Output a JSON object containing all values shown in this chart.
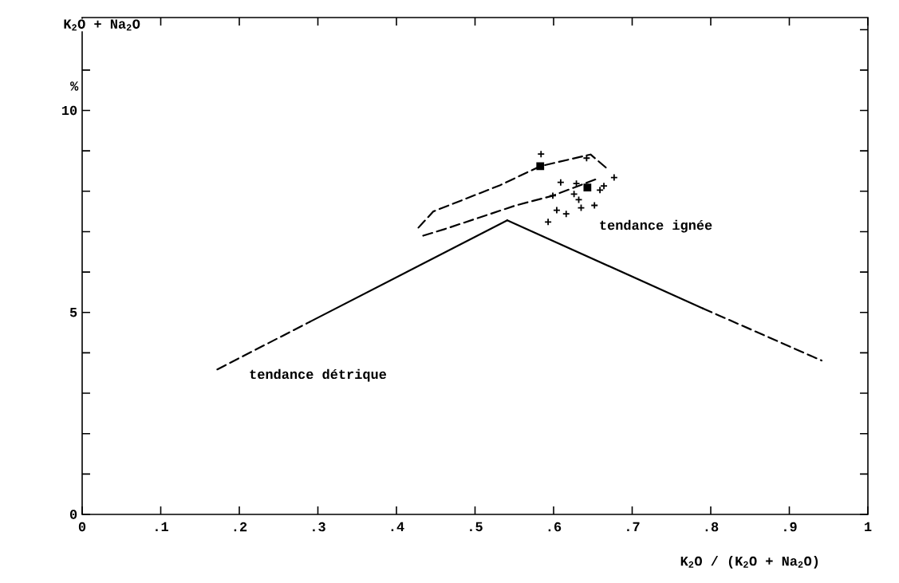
{
  "chart_data": {
    "type": "scatter",
    "xlabel": "K$_{2}$O / (K$_{2}$O + Na$_{2}$O)",
    "ylabel": "K$_{2}$O + Na$_{2}$O",
    "annotations": [
      "%",
      "tendance ignée",
      "tendance détrique"
    ],
    "xlim": [
      0,
      1
    ],
    "ylim": [
      0,
      12.3
    ],
    "xticks": [
      0,
      {
        "value": 0.1,
        "label": ".1"
      },
      {
        "value": 0.2,
        "label": ".2"
      },
      {
        "value": 0.3,
        "label": ".3"
      },
      {
        "value": 0.4,
        "label": ".4"
      },
      {
        "value": 0.5,
        "label": ".5"
      },
      {
        "value": 0.6,
        "label": ".6"
      },
      {
        "value": 0.7,
        "label": ".7"
      },
      {
        "value": 0.8,
        "label": ".8"
      },
      {
        "value": 0.9,
        "label": ".9"
      },
      1
    ],
    "yticks": [
      0,
      {
        "value": 1,
        "label": null
      },
      {
        "value": 2,
        "label": null
      },
      {
        "value": 3,
        "label": null
      },
      {
        "value": 4,
        "label": null
      },
      5,
      {
        "value": 6,
        "label": null
      },
      {
        "value": 7,
        "label": null
      },
      {
        "value": 8,
        "label": null
      },
      {
        "value": 9,
        "label": null
      },
      10,
      {
        "value": 11,
        "label": null
      },
      {
        "value": 12,
        "label": null
      }
    ],
    "series": [
      {
        "type": "line",
        "color": "#000000",
        "line_style": "dashed",
        "marker": "none",
        "x": [
          0.172,
          0.29
        ],
        "values": [
          3.59,
          4.77
        ]
      },
      {
        "type": "line",
        "color": "#000000",
        "line_style": "solid",
        "marker": "none",
        "x": [
          0.29,
          0.541
        ],
        "values": [
          4.77,
          7.28
        ]
      },
      {
        "type": "line",
        "color": "#000000",
        "line_style": "solid",
        "marker": "none",
        "x": [
          0.541,
          0.79
        ],
        "values": [
          7.28,
          5.1
        ]
      },
      {
        "type": "line",
        "color": "#000000",
        "line_style": "dashed",
        "marker": "none",
        "x": [
          0.79,
          0.941
        ],
        "values": [
          5.1,
          3.81
        ]
      },
      {
        "type": "line",
        "color": "#000000",
        "line_style": "dashed",
        "marker": "none",
        "x": [
          0.428,
          0.447,
          0.532,
          0.583,
          0.647,
          0.667
        ],
        "values": [
          7.1,
          7.5,
          8.15,
          8.62,
          8.91,
          8.58
        ]
      },
      {
        "type": "line",
        "color": "#000000",
        "line_style": "dashed",
        "marker": "none",
        "x": [
          0.434,
          0.461,
          0.552,
          0.599,
          0.657
        ],
        "values": [
          6.9,
          7.06,
          7.65,
          7.89,
          8.32
        ]
      },
      {
        "color": "#000000",
        "marker": "cross",
        "x": [
          0.584,
          0.677,
          0.642,
          0.664,
          0.659,
          0.652,
          0.635,
          0.616,
          0.604,
          0.593,
          0.599,
          0.609,
          0.626,
          0.632,
          0.629
        ],
        "values": [
          8.92,
          8.34,
          8.82,
          8.13,
          8.03,
          7.65,
          7.59,
          7.44,
          7.53,
          7.24,
          7.89,
          8.22,
          7.93,
          7.79,
          8.19
        ]
      },
      {
        "color": "#000000",
        "marker": "square",
        "x": [
          0.583,
          0.643
        ],
        "values": [
          8.62,
          8.09
        ]
      }
    ]
  }
}
